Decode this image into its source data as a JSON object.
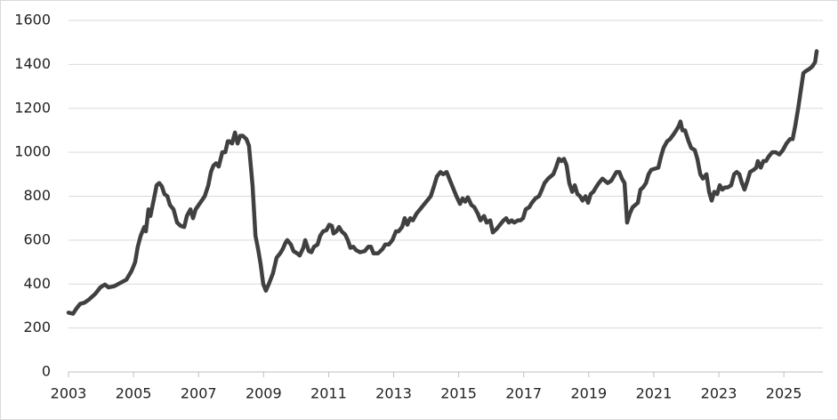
{
  "chart_data": {
    "type": "line",
    "x": [
      2003.0,
      2003.14,
      2003.25,
      2003.36,
      2003.49,
      2003.63,
      2003.82,
      2003.98,
      2004.12,
      2004.23,
      2004.4,
      2004.59,
      2004.78,
      2004.94,
      2005.05,
      2005.13,
      2005.22,
      2005.33,
      2005.38,
      2005.46,
      2005.52,
      2005.63,
      2005.71,
      2005.79,
      2005.87,
      2005.95,
      2006.04,
      2006.12,
      2006.23,
      2006.34,
      2006.45,
      2006.56,
      2006.64,
      2006.75,
      2006.83,
      2006.91,
      2007.05,
      2007.19,
      2007.3,
      2007.38,
      2007.46,
      2007.54,
      2007.62,
      2007.73,
      2007.82,
      2007.9,
      2007.95,
      2008.03,
      2008.12,
      2008.2,
      2008.28,
      2008.36,
      2008.47,
      2008.55,
      2008.66,
      2008.75,
      2008.83,
      2008.91,
      2008.99,
      2009.07,
      2009.16,
      2009.29,
      2009.4,
      2009.51,
      2009.59,
      2009.68,
      2009.73,
      2009.84,
      2009.92,
      2010.03,
      2010.11,
      2010.22,
      2010.28,
      2010.39,
      2010.47,
      2010.55,
      2010.66,
      2010.74,
      2010.83,
      2010.93,
      2011.02,
      2011.1,
      2011.15,
      2011.24,
      2011.32,
      2011.4,
      2011.51,
      2011.59,
      2011.67,
      2011.76,
      2011.84,
      2011.97,
      2012.11,
      2012.22,
      2012.3,
      2012.38,
      2012.52,
      2012.66,
      2012.74,
      2012.85,
      2012.96,
      2013.07,
      2013.15,
      2013.26,
      2013.34,
      2013.42,
      2013.51,
      2013.59,
      2013.7,
      2013.81,
      2013.92,
      2014.03,
      2014.14,
      2014.25,
      2014.33,
      2014.44,
      2014.52,
      2014.63,
      2014.71,
      2014.82,
      2014.93,
      2015.04,
      2015.12,
      2015.2,
      2015.28,
      2015.39,
      2015.48,
      2015.59,
      2015.67,
      2015.78,
      2015.86,
      2015.97,
      2016.05,
      2016.16,
      2016.27,
      2016.38,
      2016.46,
      2016.54,
      2016.63,
      2016.71,
      2016.82,
      2016.9,
      2016.98,
      2017.06,
      2017.17,
      2017.25,
      2017.36,
      2017.47,
      2017.56,
      2017.64,
      2017.75,
      2017.83,
      2017.91,
      2017.99,
      2018.08,
      2018.16,
      2018.24,
      2018.32,
      2018.4,
      2018.49,
      2018.57,
      2018.65,
      2018.73,
      2018.81,
      2018.9,
      2018.98,
      2019.06,
      2019.14,
      2019.22,
      2019.31,
      2019.42,
      2019.5,
      2019.58,
      2019.69,
      2019.77,
      2019.85,
      2019.94,
      2020.02,
      2020.1,
      2020.18,
      2020.26,
      2020.35,
      2020.43,
      2020.51,
      2020.59,
      2020.67,
      2020.76,
      2020.84,
      2020.92,
      2021.03,
      2021.14,
      2021.22,
      2021.3,
      2021.41,
      2021.5,
      2021.6,
      2021.69,
      2021.77,
      2021.82,
      2021.88,
      2021.96,
      2022.07,
      2022.15,
      2022.26,
      2022.34,
      2022.43,
      2022.51,
      2022.62,
      2022.7,
      2022.78,
      2022.86,
      2022.95,
      2023.03,
      2023.11,
      2023.19,
      2023.27,
      2023.38,
      2023.47,
      2023.55,
      2023.63,
      2023.71,
      2023.79,
      2023.88,
      2023.96,
      2024.07,
      2024.15,
      2024.2,
      2024.29,
      2024.37,
      2024.45,
      2024.53,
      2024.64,
      2024.75,
      2024.86,
      2024.97,
      2025.08,
      2025.19,
      2025.27,
      2025.35,
      2025.44,
      2025.52,
      2025.6,
      2025.68,
      2025.79,
      2025.87,
      2025.96,
      2026.01
    ],
    "values": [
      270,
      265,
      290,
      310,
      315,
      330,
      355,
      385,
      398,
      385,
      390,
      405,
      420,
      460,
      500,
      570,
      620,
      660,
      640,
      740,
      710,
      790,
      850,
      860,
      845,
      810,
      800,
      760,
      740,
      680,
      665,
      660,
      710,
      740,
      700,
      740,
      770,
      800,
      850,
      910,
      940,
      950,
      935,
      1000,
      1000,
      1050,
      1050,
      1040,
      1090,
      1040,
      1075,
      1075,
      1060,
      1030,
      850,
      620,
      560,
      490,
      400,
      370,
      400,
      450,
      520,
      540,
      560,
      590,
      600,
      580,
      550,
      540,
      530,
      565,
      600,
      550,
      545,
      570,
      580,
      620,
      640,
      645,
      670,
      665,
      630,
      640,
      660,
      640,
      625,
      600,
      565,
      570,
      555,
      545,
      550,
      570,
      570,
      540,
      540,
      560,
      580,
      580,
      600,
      640,
      640,
      660,
      700,
      670,
      700,
      690,
      720,
      740,
      760,
      780,
      800,
      850,
      890,
      910,
      900,
      910,
      880,
      840,
      800,
      765,
      790,
      775,
      795,
      760,
      750,
      720,
      690,
      710,
      680,
      690,
      635,
      650,
      670,
      690,
      700,
      680,
      690,
      680,
      690,
      690,
      700,
      740,
      750,
      770,
      790,
      800,
      830,
      860,
      880,
      890,
      900,
      930,
      970,
      960,
      970,
      940,
      860,
      820,
      850,
      810,
      800,
      780,
      800,
      770,
      810,
      820,
      840,
      860,
      880,
      870,
      860,
      870,
      890,
      910,
      910,
      880,
      860,
      680,
      720,
      750,
      760,
      770,
      830,
      840,
      860,
      900,
      920,
      925,
      930,
      980,
      1020,
      1050,
      1060,
      1080,
      1100,
      1120,
      1140,
      1100,
      1100,
      1050,
      1020,
      1010,
      970,
      900,
      880,
      900,
      820,
      780,
      820,
      810,
      850,
      830,
      840,
      840,
      850,
      900,
      910,
      900,
      860,
      830,
      870,
      910,
      920,
      930,
      960,
      930,
      960,
      960,
      980,
      1000,
      1000,
      990,
      1010,
      1040,
      1060,
      1060,
      1120,
      1200,
      1280,
      1360,
      1370,
      1380,
      1390,
      1410,
      1460
    ],
    "color": "#404040",
    "xlim": [
      2003,
      2026.2
    ],
    "xticks": [
      2003,
      2005,
      2007,
      2009,
      2011,
      2013,
      2015,
      2017,
      2019,
      2021,
      2023,
      2025
    ],
    "ylim": [
      0,
      1600
    ],
    "yticks": [
      0,
      200,
      400,
      600,
      800,
      1000,
      1200,
      1400,
      1600
    ],
    "grid": true
  }
}
